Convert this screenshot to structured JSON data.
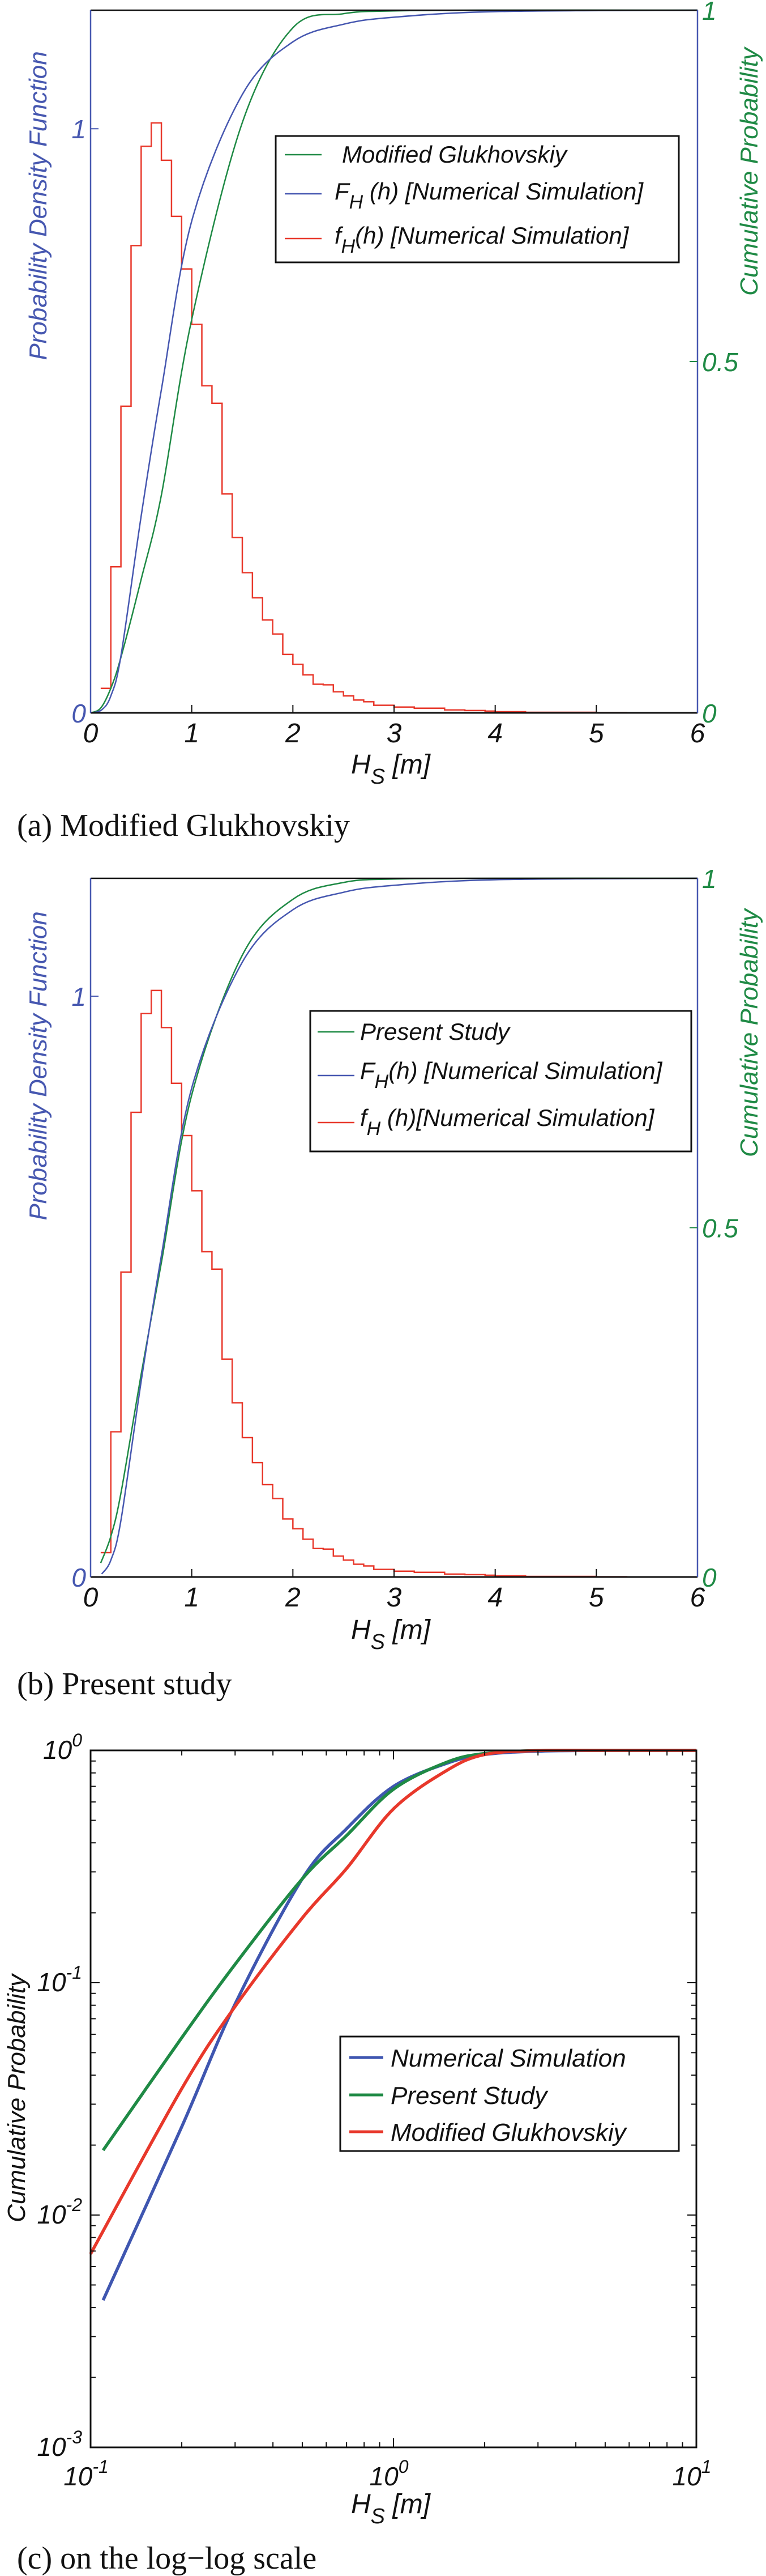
{
  "colors": {
    "blue": "#4657b0",
    "green": "#1f8a45",
    "red": "#e8382b",
    "black": "#111111"
  },
  "chart_data": [
    {
      "id": "a",
      "type": "line",
      "caption": "(a) Modified Glukhovskiy",
      "xlabel": {
        "main": "H",
        "sub": "S",
        "rest": " [m]"
      },
      "ylabel_left": "Probability Density Function",
      "ylabel_right": "Cumulative Probability",
      "xlim": [
        0,
        6
      ],
      "ylim_left": [
        0,
        1.203
      ],
      "ylim_right": [
        0,
        1
      ],
      "xticks": [
        {
          "value": 0,
          "label": "0"
        },
        {
          "value": 1,
          "label": "1"
        },
        {
          "value": 2,
          "label": "2"
        },
        {
          "value": 3,
          "label": "3"
        },
        {
          "value": 4,
          "label": "4"
        },
        {
          "value": 5,
          "label": "5"
        },
        {
          "value": 6,
          "label": "6"
        }
      ],
      "yticks_left": [
        {
          "value": 0,
          "label": "0"
        },
        {
          "value": 1,
          "label": "1"
        }
      ],
      "yticks_right": [
        {
          "value": 0,
          "label": "0"
        },
        {
          "value": 0.5,
          "label": "0.5"
        },
        {
          "value": 1,
          "label": "1"
        }
      ],
      "legend": [
        {
          "main": " Modified Glukhovskiy",
          "sub": "",
          "rest": "",
          "color": "#1f8a45"
        },
        {
          "main": "F",
          "sub": "H",
          "rest": " (h) [Numerical Simulation]",
          "color": "#4657b0"
        },
        {
          "main": "f",
          "sub": "H",
          "rest": "(h) [Numerical Simulation]",
          "color": "#e8382b"
        }
      ],
      "histogram": {
        "name": "f_H(h) [Numerical Simulation]",
        "axis": "left",
        "color": "#e8382b",
        "bin_start": 0.1,
        "bin_width": 0.1,
        "values": [
          0.042,
          0.25,
          0.525,
          0.8,
          0.97,
          1.01,
          0.946,
          0.85,
          0.76,
          0.665,
          0.56,
          0.53,
          0.375,
          0.3,
          0.24,
          0.197,
          0.159,
          0.135,
          0.1,
          0.083,
          0.065,
          0.049,
          0.048,
          0.036,
          0.029,
          0.022,
          0.019,
          0.013,
          0.013,
          0.01,
          0.01,
          0.008,
          0.008,
          0.008,
          0.005,
          0.005,
          0.004,
          0.004,
          0.003,
          0.002,
          0.002,
          0.002,
          0.001,
          0.001,
          0.001,
          0.001,
          0.001,
          0.001,
          0.001,
          0.0005,
          0.0005,
          0.0005,
          0.0003,
          0.0003,
          0.0002,
          0.0002,
          0.0001,
          0.0001,
          0.0001
        ]
      },
      "series": [
        {
          "name": "Modified Glukhovskiy",
          "axis": "right",
          "color": "#1f8a45",
          "x": [
            0,
            0.1,
            0.2,
            0.3,
            0.5,
            0.7,
            1,
            1.5,
            2,
            2.5,
            3,
            4,
            6
          ],
          "y": [
            0,
            0.0068,
            0.035,
            0.079,
            0.19,
            0.31,
            0.56,
            0.84,
            0.975,
            0.995,
            0.999,
            1,
            1
          ]
        },
        {
          "name": "F_H(h) [Numerical Simulation]",
          "axis": "right",
          "color": "#4657b0",
          "x": [
            0,
            0.11,
            0.2,
            0.3,
            0.5,
            0.7,
            1,
            1.5,
            2,
            2.5,
            3,
            4,
            6
          ],
          "y": [
            0,
            0.0043,
            0.024,
            0.081,
            0.28,
            0.46,
            0.7,
            0.88,
            0.955,
            0.98,
            0.99,
            0.998,
            1
          ]
        }
      ]
    },
    {
      "id": "b",
      "type": "line",
      "caption": "(b) Present study",
      "xlabel": {
        "main": "H",
        "sub": "S",
        "rest": " [m]"
      },
      "ylabel_left": "Probability Density Function",
      "ylabel_right": "Cumulative Probability",
      "xlim": [
        0,
        6
      ],
      "ylim_left": [
        0,
        1.203
      ],
      "ylim_right": [
        0,
        1
      ],
      "xticks": [
        {
          "value": 0,
          "label": "0"
        },
        {
          "value": 1,
          "label": "1"
        },
        {
          "value": 2,
          "label": "2"
        },
        {
          "value": 3,
          "label": "3"
        },
        {
          "value": 4,
          "label": "4"
        },
        {
          "value": 5,
          "label": "5"
        },
        {
          "value": 6,
          "label": "6"
        }
      ],
      "yticks_left": [
        {
          "value": 0,
          "label": "0"
        },
        {
          "value": 1,
          "label": "1"
        }
      ],
      "yticks_right": [
        {
          "value": 0,
          "label": "0"
        },
        {
          "value": 0.5,
          "label": "0.5"
        },
        {
          "value": 1,
          "label": "1"
        }
      ],
      "legend": [
        {
          "main": "Present Study",
          "sub": "",
          "rest": "",
          "color": "#1f8a45"
        },
        {
          "main": "F",
          "sub": "H",
          "rest": "(h) [Numerical Simulation]",
          "color": "#4657b0"
        },
        {
          "main": "f",
          "sub": "H",
          "rest": " (h)[Numerical Simulation]",
          "color": "#e8382b"
        }
      ],
      "histogram": {
        "name": "f_H(h)[Numerical Simulation]",
        "axis": "left",
        "color": "#e8382b",
        "bin_start": 0.1,
        "bin_width": 0.1,
        "values": [
          0.042,
          0.25,
          0.525,
          0.8,
          0.97,
          1.01,
          0.946,
          0.85,
          0.76,
          0.665,
          0.56,
          0.53,
          0.375,
          0.3,
          0.24,
          0.197,
          0.159,
          0.135,
          0.1,
          0.083,
          0.065,
          0.049,
          0.048,
          0.036,
          0.029,
          0.022,
          0.019,
          0.013,
          0.013,
          0.01,
          0.01,
          0.008,
          0.008,
          0.008,
          0.005,
          0.005,
          0.004,
          0.004,
          0.003,
          0.002,
          0.002,
          0.002,
          0.001,
          0.001,
          0.001,
          0.001,
          0.001,
          0.001,
          0.001,
          0.0005,
          0.0005,
          0.0005,
          0.0003,
          0.0003,
          0.0002,
          0.0002,
          0.0001,
          0.0001,
          0.0001
        ]
      },
      "series": [
        {
          "name": "Present Study",
          "axis": "right",
          "color": "#1f8a45",
          "x": [
            0.1,
            0.2,
            0.3,
            0.5,
            0.7,
            1,
            1.5,
            2,
            2.5,
            3,
            4,
            6
          ],
          "y": [
            0.02,
            0.058,
            0.12,
            0.29,
            0.45,
            0.69,
            0.89,
            0.97,
            0.994,
            0.999,
            1,
            1
          ]
        },
        {
          "name": "F_H(h) [Numerical Simulation]",
          "axis": "right",
          "color": "#4657b0",
          "x": [
            0.11,
            0.2,
            0.3,
            0.5,
            0.7,
            1,
            1.5,
            2,
            2.5,
            3,
            4,
            6
          ],
          "y": [
            0.0043,
            0.024,
            0.081,
            0.28,
            0.46,
            0.7,
            0.88,
            0.955,
            0.98,
            0.99,
            0.998,
            1
          ]
        }
      ]
    },
    {
      "id": "c",
      "type": "line",
      "scale": "log-log",
      "caption": "(c) on the log−log scale",
      "xlabel": {
        "main": "H",
        "sub": "S",
        "rest": " [m]"
      },
      "ylabel": "Cumulative Probability",
      "xlim": [
        0.1,
        10
      ],
      "ylim": [
        0.001,
        1
      ],
      "xticks": [
        {
          "value": 0.1,
          "base": "10",
          "exp": "-1"
        },
        {
          "value": 1,
          "base": "10",
          "exp": "0"
        },
        {
          "value": 10,
          "base": "10",
          "exp": "1"
        }
      ],
      "yticks": [
        {
          "value": 0.001,
          "base": "10",
          "exp": "-3"
        },
        {
          "value": 0.01,
          "base": "10",
          "exp": "-2"
        },
        {
          "value": 0.1,
          "base": "10",
          "exp": "-1"
        },
        {
          "value": 1,
          "base": "10",
          "exp": "0"
        }
      ],
      "legend": [
        {
          "main": "Numerical Simulation",
          "sub": "",
          "rest": "",
          "color": "#3f56b0"
        },
        {
          "main": "Present Study",
          "sub": "",
          "rest": "",
          "color": "#1f8a45"
        },
        {
          "main": "Modified Glukhovskiy",
          "sub": "",
          "rest": "",
          "color": "#e8382b"
        }
      ],
      "series": [
        {
          "name": "Numerical Simulation",
          "color": "#3f56b0",
          "x": [
            0.11,
            0.2,
            0.3,
            0.5,
            0.7,
            1,
            1.5,
            2,
            3,
            5,
            10
          ],
          "y": [
            0.0043,
            0.024,
            0.081,
            0.28,
            0.46,
            0.7,
            0.88,
            0.96,
            0.992,
            0.999,
            1
          ]
        },
        {
          "name": "Present Study",
          "color": "#1f8a45",
          "x": [
            0.11,
            0.2,
            0.3,
            0.5,
            0.7,
            1,
            1.5,
            2,
            3,
            5,
            10
          ],
          "y": [
            0.019,
            0.058,
            0.12,
            0.28,
            0.43,
            0.68,
            0.89,
            0.97,
            0.998,
            1,
            1
          ]
        },
        {
          "name": "Modified Glukhovskiy",
          "color": "#e8382b",
          "x": [
            0.1,
            0.2,
            0.3,
            0.5,
            0.7,
            1,
            1.5,
            2,
            3,
            5
          ],
          "y": [
            0.0068,
            0.035,
            0.079,
            0.19,
            0.31,
            0.56,
            0.82,
            0.96,
            0.998,
            1
          ]
        }
      ]
    }
  ]
}
